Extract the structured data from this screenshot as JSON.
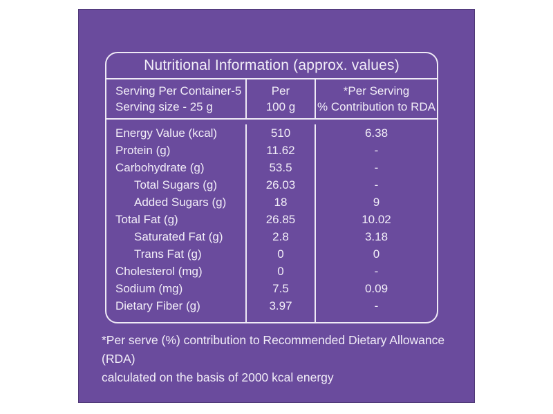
{
  "colors": {
    "background": "#6A4B9D",
    "panel_border": "#4E3876",
    "line": "#EFEAF6",
    "text": "#F2EEF8",
    "page": "#FFFFFF"
  },
  "label": {
    "title": "Nutritional Information (approx. values)",
    "header": {
      "serving_line1": "Serving Per Container-5",
      "serving_line2": "Serving size - 25 g",
      "per_line1": "Per",
      "per_line2": "100 g",
      "rda_line1": "*Per Serving",
      "rda_line2": "% Contribution to RDA"
    },
    "rows": [
      {
        "name": "Energy Value (kcal)",
        "per100g": "510",
        "rda": "6.38",
        "indent": false
      },
      {
        "name": "Protein (g)",
        "per100g": "11.62",
        "rda": "-",
        "indent": false
      },
      {
        "name": "Carbohydrate (g)",
        "per100g": "53.5",
        "rda": "-",
        "indent": false
      },
      {
        "name": "Total Sugars (g)",
        "per100g": "26.03",
        "rda": "-",
        "indent": true
      },
      {
        "name": "Added Sugars (g)",
        "per100g": "18",
        "rda": "9",
        "indent": true
      },
      {
        "name": "Total Fat (g)",
        "per100g": "26.85",
        "rda": "10.02",
        "indent": false
      },
      {
        "name": "Saturated Fat (g)",
        "per100g": "2.8",
        "rda": "3.18",
        "indent": true
      },
      {
        "name": "Trans Fat (g)",
        "per100g": "0",
        "rda": "0",
        "indent": true
      },
      {
        "name": "Cholesterol (mg)",
        "per100g": "0",
        "rda": "-",
        "indent": false
      },
      {
        "name": "Sodium (mg)",
        "per100g": "7.5",
        "rda": "0.09",
        "indent": false
      },
      {
        "name": "Dietary Fiber (g)",
        "per100g": "3.97",
        "rda": "-",
        "indent": false
      }
    ],
    "footnote_line1": "*Per serve (%) contribution to Recommended Dietary Allowance (RDA)",
    "footnote_line2": "calculated on the basis of 2000 kcal energy"
  }
}
